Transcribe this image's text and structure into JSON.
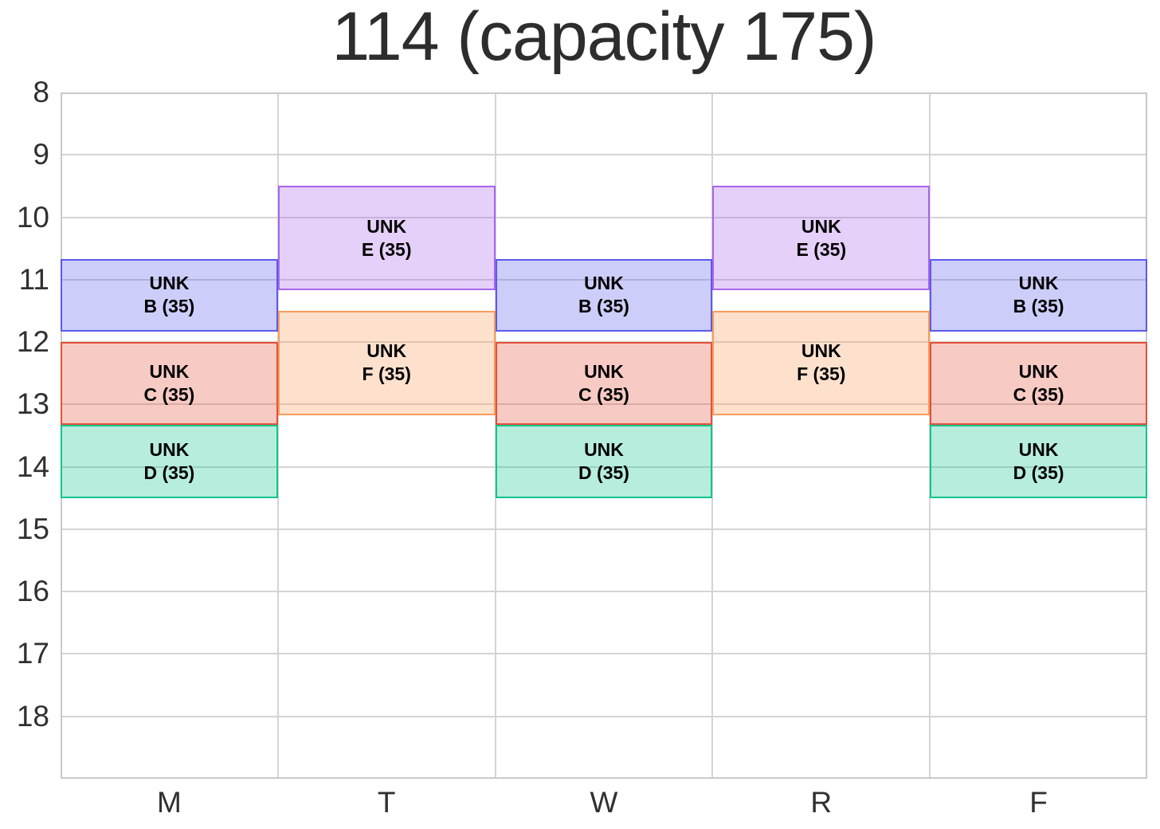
{
  "title": "114 (capacity 175)",
  "chart_data": {
    "type": "bar",
    "variant": "weekly-timetable-ranged-bars",
    "title": "114 (capacity 175)",
    "room": "114",
    "room_capacity": 175,
    "x_categories": [
      "M",
      "T",
      "W",
      "R",
      "F"
    ],
    "y_ticks": [
      8,
      9,
      10,
      11,
      12,
      13,
      14,
      15,
      16,
      17,
      18
    ],
    "y_range": [
      8,
      19
    ],
    "y_direction": "down",
    "grid": true,
    "legend": "none",
    "sessions": [
      {
        "course": "UNK",
        "block": "B",
        "enrollment": 35,
        "label_lines": [
          "UNK",
          "B (35)"
        ],
        "days": [
          "M",
          "W",
          "F"
        ],
        "start_hour": 10.67,
        "end_hour": 11.83,
        "border_color": "#5a5aec",
        "fill_alpha": 0.3
      },
      {
        "course": "UNK",
        "block": "C",
        "enrollment": 35,
        "label_lines": [
          "UNK",
          "C (35)"
        ],
        "days": [
          "M",
          "W",
          "F"
        ],
        "start_hour": 12.0,
        "end_hour": 13.33,
        "border_color": "#e4503a",
        "fill_alpha": 0.3
      },
      {
        "course": "UNK",
        "block": "D",
        "enrollment": 35,
        "label_lines": [
          "UNK",
          "D (35)"
        ],
        "days": [
          "M",
          "W",
          "F"
        ],
        "start_hour": 13.33,
        "end_hour": 14.5,
        "border_color": "#10c48e",
        "fill_alpha": 0.3
      },
      {
        "course": "UNK",
        "block": "E",
        "enrollment": 35,
        "label_lines": [
          "UNK",
          "E (35)"
        ],
        "days": [
          "T",
          "R"
        ],
        "start_hour": 9.5,
        "end_hour": 11.17,
        "border_color": "#a865ec",
        "fill_alpha": 0.3
      },
      {
        "course": "UNK",
        "block": "F",
        "enrollment": 35,
        "label_lines": [
          "UNK",
          "F (35)"
        ],
        "days": [
          "T",
          "R"
        ],
        "start_hour": 11.5,
        "end_hour": 13.17,
        "border_color": "#f89b59",
        "fill_alpha": 0.3
      }
    ],
    "colors": {
      "grid": "#d4d4d4",
      "spine": "#c9c9c9",
      "tick_label": "#303030",
      "title": "#2d2d2d",
      "session_text": "#000000",
      "background": "#ffffff"
    }
  }
}
